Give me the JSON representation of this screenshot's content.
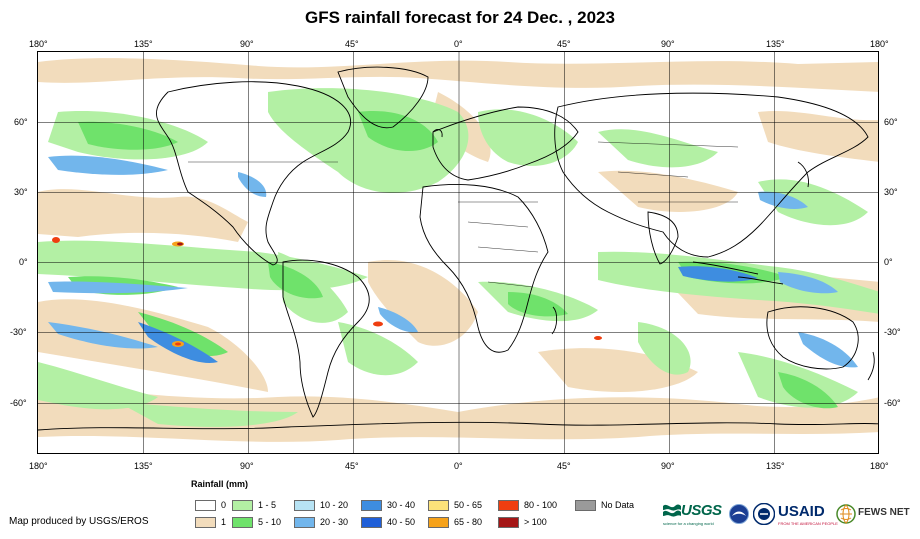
{
  "title": "GFS rainfall forecast for 24 Dec. , 2023",
  "longitude_labels": [
    "180°",
    "135°",
    "90°",
    "45°",
    "0°",
    "45°",
    "90°",
    "135°",
    "180°"
  ],
  "latitude_labels": [
    "60°",
    "30°",
    "0°",
    "-30°",
    "-60°"
  ],
  "legend": {
    "title": "Rainfall (mm)",
    "items": [
      {
        "label": "0",
        "color": "#ffffff"
      },
      {
        "label": "1",
        "color": "#f2dcbc"
      },
      {
        "label": "1 - 5",
        "color": "#b3f0a4"
      },
      {
        "label": "5 - 10",
        "color": "#6fe26b"
      },
      {
        "label": "10 - 20",
        "color": "#b7e3f4"
      },
      {
        "label": "20 - 30",
        "color": "#72b6ec"
      },
      {
        "label": "30 - 40",
        "color": "#3e8de0"
      },
      {
        "label": "40 - 50",
        "color": "#1f5fd8"
      },
      {
        "label": "50 - 65",
        "color": "#fce27a"
      },
      {
        "label": "65 - 80",
        "color": "#f6a21a"
      },
      {
        "label": "80 - 100",
        "color": "#ef3e10"
      },
      {
        "label": "> 100",
        "color": "#a41616"
      },
      {
        "label": "No Data",
        "color": "#9a9a9a"
      }
    ]
  },
  "producer": "Map produced by USGS/EROS",
  "logos": {
    "usgs": {
      "name": "USGS",
      "tagline": "science for a changing world"
    },
    "usaid": {
      "name": "USAID",
      "tagline": "FROM THE AMERICAN PEOPLE"
    },
    "fews": {
      "name": "FEWS NET"
    }
  }
}
